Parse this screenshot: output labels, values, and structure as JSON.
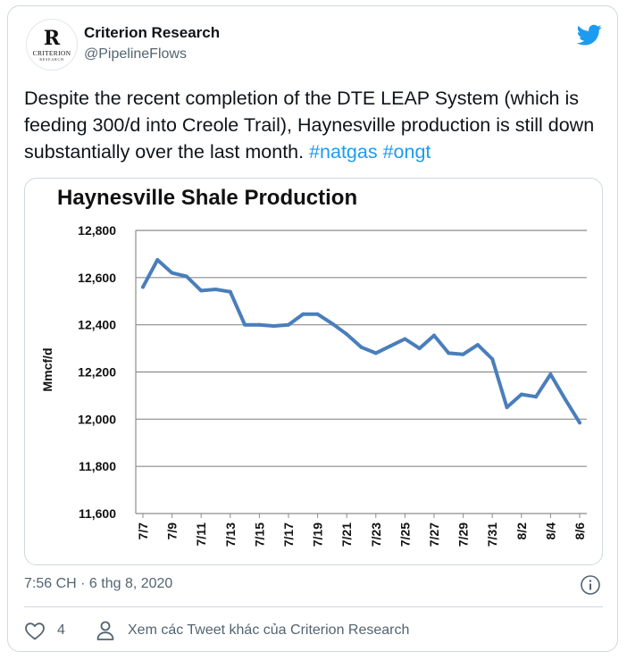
{
  "author": {
    "name": "Criterion Research",
    "handle": "@PipelineFlows",
    "avatar_monogram": "R",
    "avatar_wordmark": "CRITERION",
    "avatar_subtext": "RESEARCH"
  },
  "tweet": {
    "text": "Despite the recent completion of the DTE LEAP System (which is feeding 300/d into Creole Trail), Haynesville production is still down substantially over the last month. ",
    "hashtags": [
      "#natgas",
      "#ongt"
    ],
    "timestamp": "7:56 CH · 6 thg 8, 2020",
    "like_count": "4",
    "more_tweets_label": "Xem các Tweet khác của Criterion Research"
  },
  "icons": {
    "brand": "twitter-bird-icon",
    "info": "info-icon",
    "like": "heart-icon",
    "profile": "person-icon"
  },
  "colors": {
    "accent": "#1d9bf0",
    "series_line": "#4a7ebb",
    "muted_text": "#536471"
  },
  "chart_data": {
    "type": "line",
    "title": "Haynesville Shale Production",
    "ylabel": "Mmcf/d",
    "xlabel": "",
    "ylim": [
      11600,
      12800
    ],
    "yticks": [
      "12,800",
      "12,600",
      "12,400",
      "12,200",
      "12,000",
      "11,800",
      "11,600"
    ],
    "ytick_values": [
      12800,
      12600,
      12400,
      12200,
      12000,
      11800,
      11600
    ],
    "xticks": [
      "7/7",
      "7/9",
      "7/11",
      "7/13",
      "7/15",
      "7/17",
      "7/19",
      "7/21",
      "7/23",
      "7/25",
      "7/27",
      "7/29",
      "7/31",
      "8/2",
      "8/4",
      "8/6"
    ],
    "grid": true,
    "legend": "none",
    "x": [
      "7/7",
      "7/8",
      "7/9",
      "7/10",
      "7/11",
      "7/12",
      "7/13",
      "7/14",
      "7/15",
      "7/16",
      "7/17",
      "7/18",
      "7/19",
      "7/20",
      "7/21",
      "7/22",
      "7/23",
      "7/24",
      "7/25",
      "7/26",
      "7/27",
      "7/28",
      "7/29",
      "7/30",
      "7/31",
      "8/1",
      "8/2",
      "8/3",
      "8/4",
      "8/5",
      "8/6"
    ],
    "values": [
      12560,
      12675,
      12620,
      12605,
      12545,
      12550,
      12540,
      12400,
      12400,
      12395,
      12400,
      12445,
      12445,
      12405,
      12360,
      12305,
      12280,
      12310,
      12340,
      12300,
      12355,
      12280,
      12275,
      12315,
      12255,
      12050,
      12105,
      12095,
      12190,
      12085,
      11985
    ]
  }
}
